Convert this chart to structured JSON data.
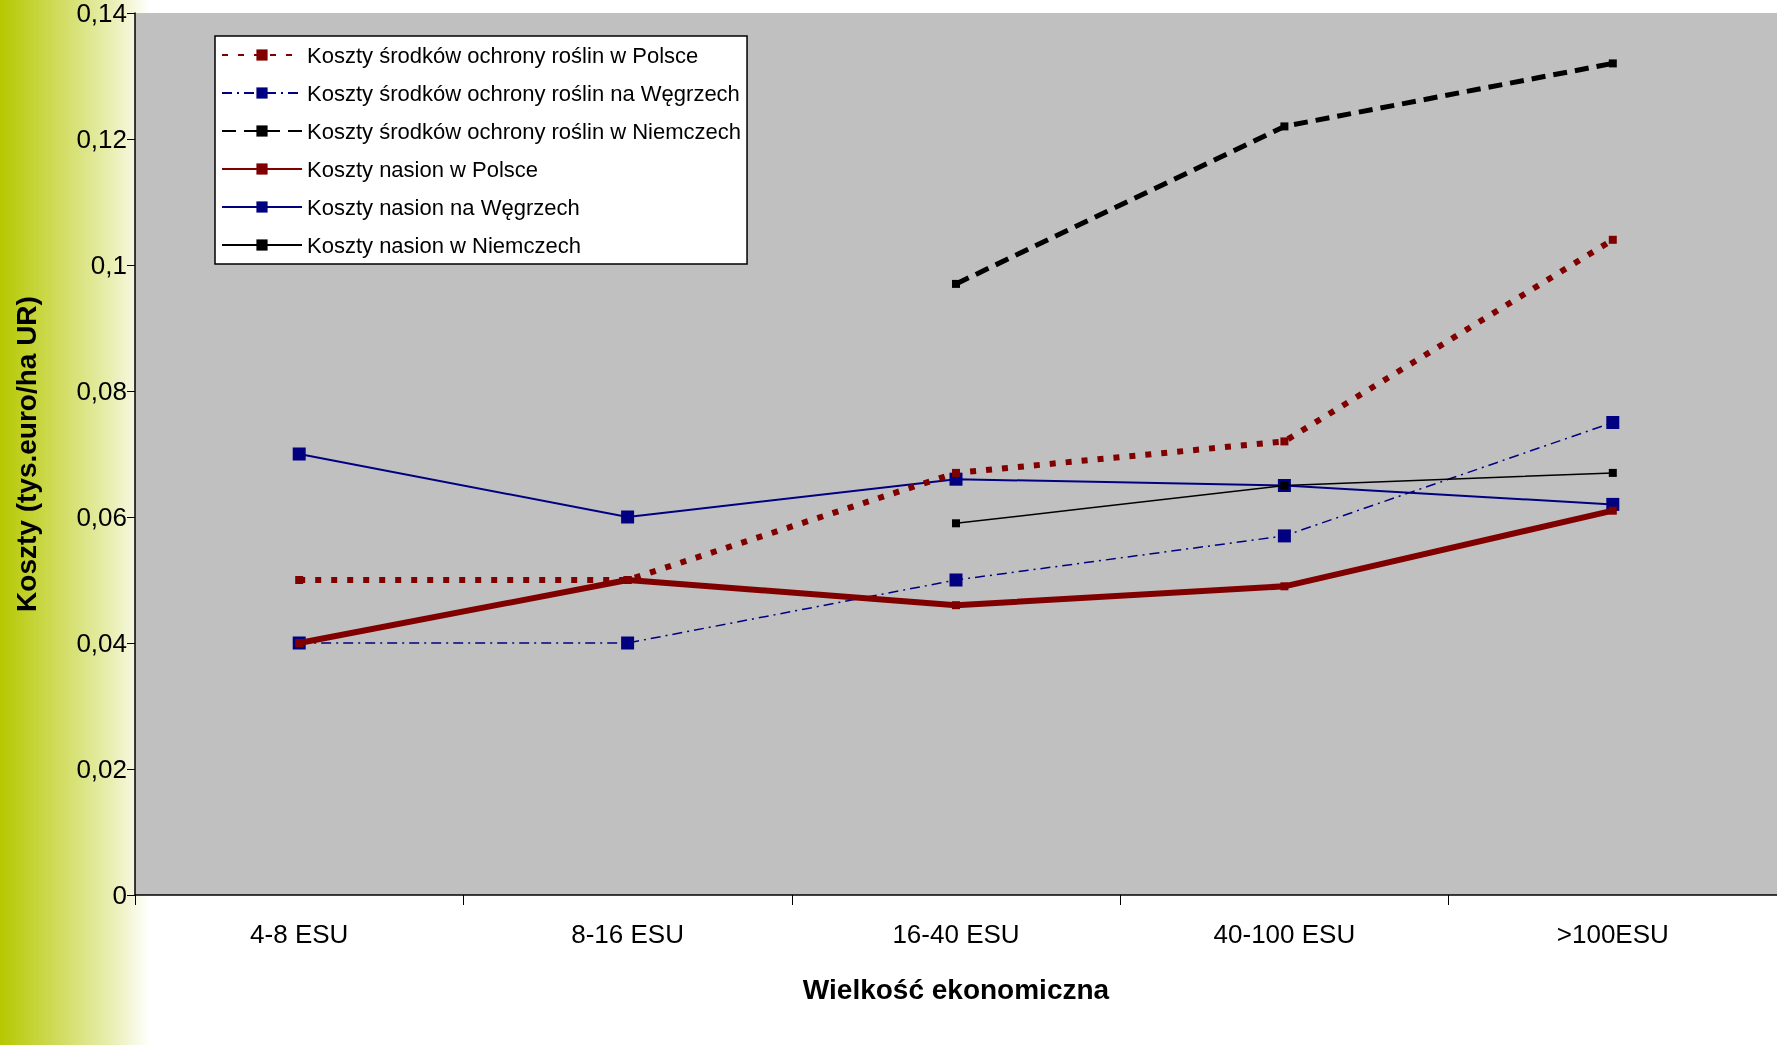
{
  "chart_data": {
    "type": "line",
    "xlabel": "Wielkość ekonomiczna",
    "ylabel": "Koszty (tys.euro/ha UR)",
    "categories": [
      "4-8 ESU",
      "8-16 ESU",
      "16-40 ESU",
      "40-100 ESU",
      ">100ESU"
    ],
    "ylim": [
      0,
      0.14
    ],
    "yticks": [
      {
        "value": 0,
        "label": "0"
      },
      {
        "value": 0.02,
        "label": "0,02"
      },
      {
        "value": 0.04,
        "label": "0,04"
      },
      {
        "value": 0.06,
        "label": "0,06"
      },
      {
        "value": 0.08,
        "label": "0,08"
      },
      {
        "value": 0.1,
        "label": "0,1"
      },
      {
        "value": 0.12,
        "label": "0,12"
      },
      {
        "value": 0.14,
        "label": "0,14"
      }
    ],
    "grid": false,
    "legend": "top left",
    "marker": "square",
    "series": [
      {
        "name": "Koszty środków ochrony roślin w Polsce",
        "color": "#800000",
        "line_style": "dotted",
        "values": [
          0.05,
          0.05,
          0.067,
          0.072,
          0.104
        ]
      },
      {
        "name": "Koszty środków ochrony roślin na Węgrzech",
        "color": "#000080",
        "line_style": "dashed",
        "values": [
          0.04,
          0.04,
          0.05,
          0.057,
          0.075
        ]
      },
      {
        "name": "Koszty środków ochrony roślin w Niemczech",
        "color": "#000000",
        "line_style": "dashed",
        "values": [
          null,
          null,
          0.097,
          0.122,
          0.132
        ]
      },
      {
        "name": "Koszty nasion w Polsce",
        "color": "#800000",
        "line_style": "solid",
        "values": [
          0.04,
          0.05,
          0.046,
          0.049,
          0.061
        ]
      },
      {
        "name": "Koszty nasion na Węgrzech",
        "color": "#000080",
        "line_style": "solid",
        "values": [
          0.07,
          0.06,
          0.066,
          0.065,
          0.062
        ]
      },
      {
        "name": "Koszty nasion w Niemczech",
        "color": "#000000",
        "line_style": "solid",
        "values": [
          null,
          null,
          0.059,
          0.065,
          0.067
        ]
      }
    ]
  }
}
